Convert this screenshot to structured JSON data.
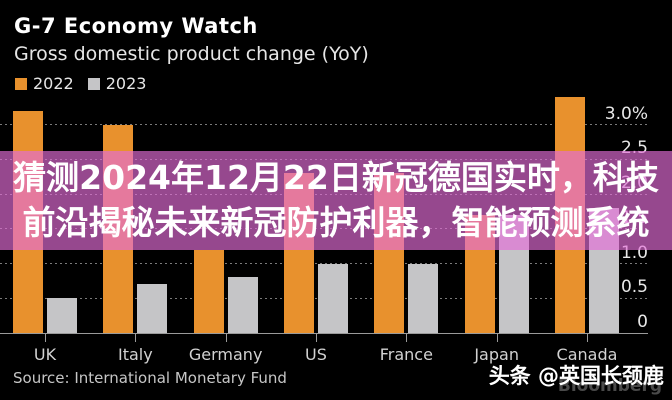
{
  "header": {
    "title": "G-7 Economy Watch",
    "subtitle": "Gross domestic product change (YoY)"
  },
  "chart_data": {
    "type": "bar",
    "title": "G-7 Economy Watch",
    "subtitle": "Gross domestic product change (YoY)",
    "categories": [
      "UK",
      "Italy",
      "Germany",
      "US",
      "France",
      "Japan",
      "Canada"
    ],
    "series": [
      {
        "name": "2022",
        "color": "#E8912D",
        "values": [
          3.2,
          3.0,
          1.2,
          2.3,
          2.3,
          1.7,
          3.4
        ]
      },
      {
        "name": "2023",
        "color": "#C5C5C7",
        "values": [
          0.5,
          0.7,
          0.8,
          1.0,
          1.0,
          1.7,
          1.8
        ]
      }
    ],
    "xlabel": "",
    "ylabel": "",
    "ylim": [
      0,
      3.5
    ],
    "y_tick_values": [
      3.0,
      2.5,
      2.0,
      1.5,
      1.0,
      0.5,
      0
    ],
    "y_tick_labels": [
      "3.0%",
      "2.5",
      "2.0",
      "1.5",
      "1.0",
      "0.5",
      "0"
    ],
    "grid": "dotted horizontal",
    "legend_position": "top-left",
    "background": "#000000"
  },
  "overlay": {
    "line1": "猜测2024年12月22日新冠德国实时，科技",
    "line2": "前沿揭秘未来新冠防护利器，智能预测系统",
    "text_color": "#FFFFFF",
    "band_color": "#E46ED7"
  },
  "footer": {
    "source": "Source: International Monetary Fund",
    "byline": "头条 @英国长颈鹿",
    "brand": "Bloomberg"
  }
}
